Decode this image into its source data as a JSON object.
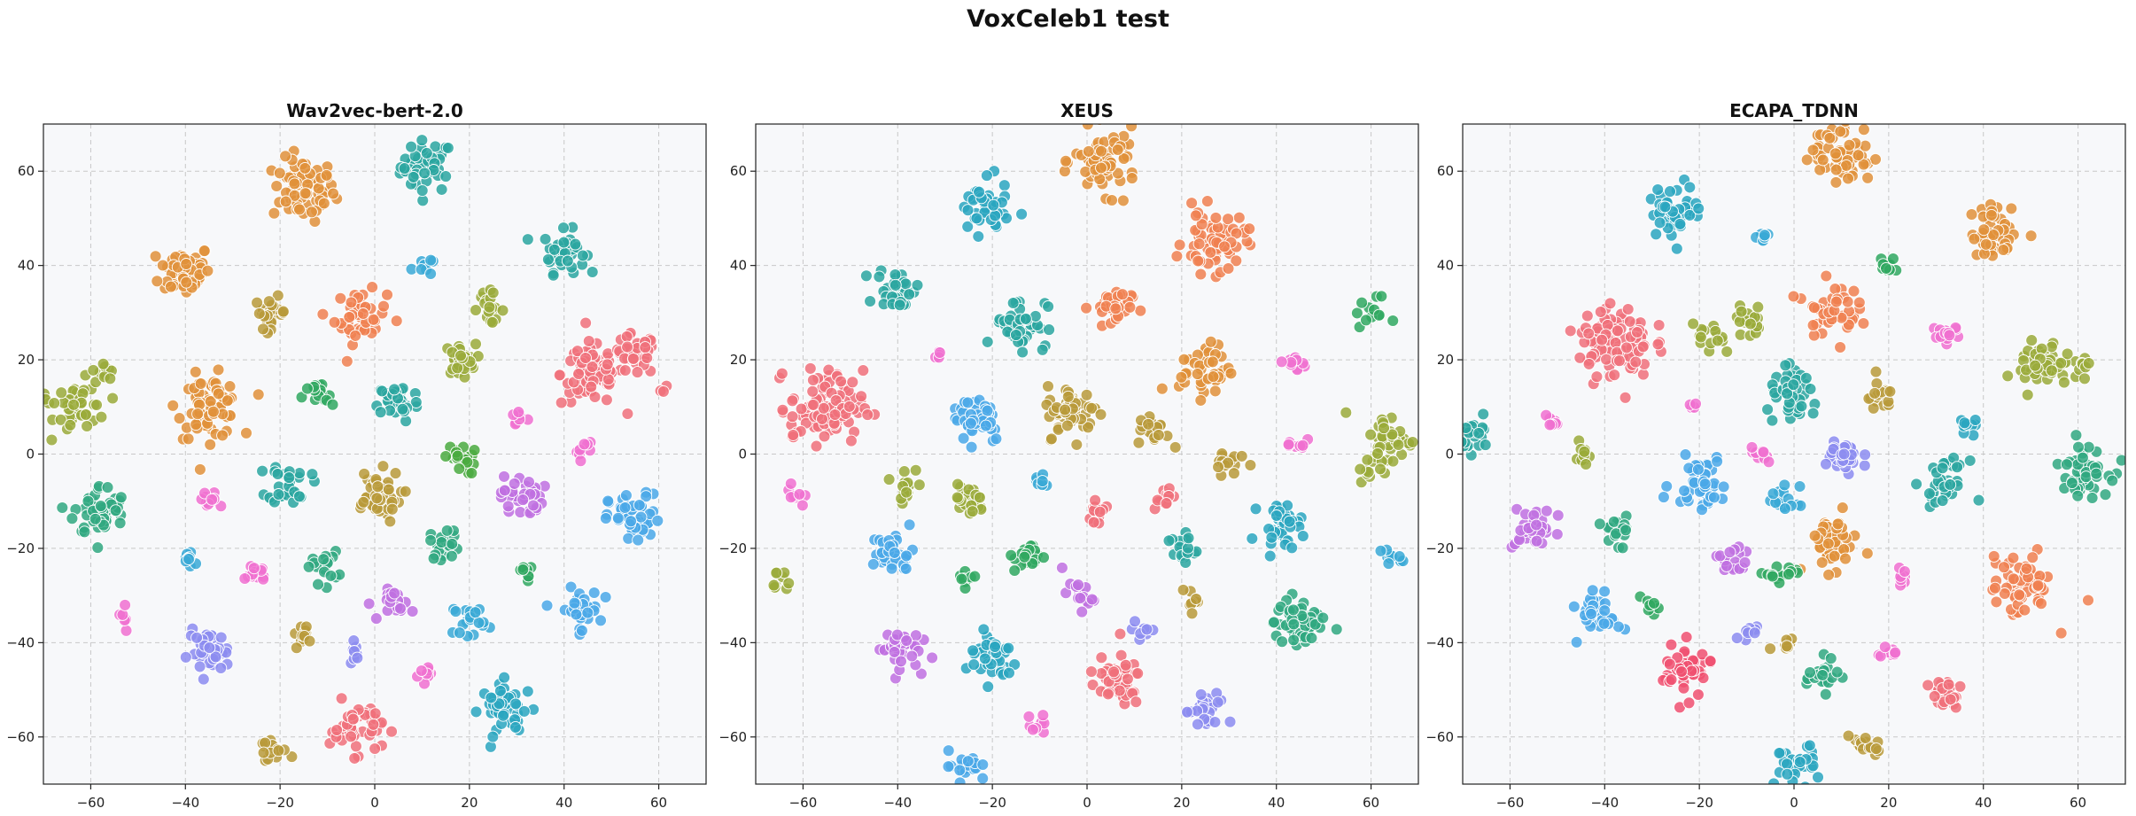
{
  "figure": {
    "title": "VoxCeleb1 test"
  },
  "chart_data": [
    {
      "type": "scatter",
      "title": "Wav2vec-bert-2.0",
      "xlabel": "",
      "ylabel": "",
      "xlim": [
        -70,
        70
      ],
      "ylim": [
        -70,
        70
      ],
      "xticks": [
        -60,
        -40,
        -20,
        0,
        20,
        40,
        60
      ],
      "yticks": [
        -60,
        -40,
        -20,
        0,
        20,
        40,
        60
      ],
      "grid": true,
      "clusters": [
        {
          "x": 11,
          "y": 61,
          "r": 5,
          "n": 45,
          "color": "#2aa6a0"
        },
        {
          "x": -15,
          "y": 56,
          "r": 6,
          "n": 70,
          "color": "#e0913a"
        },
        {
          "x": -40,
          "y": 39,
          "r": 5,
          "n": 60,
          "color": "#e0913a"
        },
        {
          "x": 40,
          "y": 43,
          "r": 4,
          "n": 40,
          "color": "#2aa6a0"
        },
        {
          "x": 10,
          "y": 40,
          "r": 2,
          "n": 8,
          "color": "#3aa9d6"
        },
        {
          "x": -3,
          "y": 29,
          "r": 5,
          "n": 45,
          "color": "#f08050"
        },
        {
          "x": -22,
          "y": 30,
          "r": 3,
          "n": 25,
          "color": "#b89a3a"
        },
        {
          "x": 24,
          "y": 31,
          "r": 3,
          "n": 20,
          "color": "#9aaa3a"
        },
        {
          "x": 46,
          "y": 17,
          "r": 6,
          "n": 80,
          "color": "#f0707a"
        },
        {
          "x": 55,
          "y": 21,
          "r": 4,
          "n": 40,
          "color": "#f0707a"
        },
        {
          "x": -62,
          "y": 10,
          "r": 5,
          "n": 40,
          "color": "#9aaa3a"
        },
        {
          "x": -57,
          "y": 18,
          "r": 2,
          "n": 10,
          "color": "#9aaa3a"
        },
        {
          "x": -35,
          "y": 10,
          "r": 6,
          "n": 70,
          "color": "#e0913a"
        },
        {
          "x": 18,
          "y": 20,
          "r": 3,
          "n": 30,
          "color": "#9aaa3a"
        },
        {
          "x": -12,
          "y": 12,
          "r": 3,
          "n": 15,
          "color": "#30a860"
        },
        {
          "x": 5,
          "y": 11,
          "r": 4,
          "n": 40,
          "color": "#2aa6a0"
        },
        {
          "x": 30,
          "y": 8,
          "r": 2,
          "n": 8,
          "color": "#f070d0"
        },
        {
          "x": -58,
          "y": -12,
          "r": 5,
          "n": 50,
          "color": "#30a880"
        },
        {
          "x": -18,
          "y": -6,
          "r": 4,
          "n": 30,
          "color": "#2aa6a0"
        },
        {
          "x": 0,
          "y": -9,
          "r": 5,
          "n": 45,
          "color": "#b89a3a"
        },
        {
          "x": 18,
          "y": -1,
          "r": 3,
          "n": 20,
          "color": "#4aaa40"
        },
        {
          "x": 31,
          "y": -9,
          "r": 4,
          "n": 35,
          "color": "#c070e0"
        },
        {
          "x": 44,
          "y": 1,
          "r": 2,
          "n": 8,
          "color": "#f070d0"
        },
        {
          "x": 55,
          "y": -14,
          "r": 5,
          "n": 50,
          "color": "#4aa8e8"
        },
        {
          "x": -35,
          "y": -10,
          "r": 2,
          "n": 12,
          "color": "#f070d0"
        },
        {
          "x": -39,
          "y": -22,
          "r": 2,
          "n": 12,
          "color": "#3aa9d6"
        },
        {
          "x": -25,
          "y": -25,
          "r": 2,
          "n": 12,
          "color": "#f070d0"
        },
        {
          "x": -11,
          "y": -24,
          "r": 3,
          "n": 18,
          "color": "#30a880"
        },
        {
          "x": 15,
          "y": -19,
          "r": 3,
          "n": 20,
          "color": "#30a880"
        },
        {
          "x": 32,
          "y": -25,
          "r": 2,
          "n": 8,
          "color": "#30a860"
        },
        {
          "x": 43,
          "y": -33,
          "r": 4,
          "n": 35,
          "color": "#4aa8e8"
        },
        {
          "x": -52,
          "y": -34,
          "r": 2,
          "n": 6,
          "color": "#f070d0"
        },
        {
          "x": -35,
          "y": -42,
          "r": 4,
          "n": 40,
          "color": "#8c8cf0"
        },
        {
          "x": -15,
          "y": -38,
          "r": 2,
          "n": 12,
          "color": "#b89a3a"
        },
        {
          "x": 5,
          "y": -32,
          "r": 3,
          "n": 20,
          "color": "#c070e0"
        },
        {
          "x": 20,
          "y": -35,
          "r": 3,
          "n": 20,
          "color": "#3aa9d6"
        },
        {
          "x": -4,
          "y": -42,
          "r": 2,
          "n": 8,
          "color": "#8c8cf0"
        },
        {
          "x": 10,
          "y": -47,
          "r": 2,
          "n": 8,
          "color": "#f070d0"
        },
        {
          "x": 28,
          "y": -54,
          "r": 5,
          "n": 45,
          "color": "#2aa6c0"
        },
        {
          "x": -4,
          "y": -58,
          "r": 5,
          "n": 45,
          "color": "#f0707a"
        },
        {
          "x": -22,
          "y": -63,
          "r": 3,
          "n": 15,
          "color": "#b89a3a"
        },
        {
          "x": -69,
          "y": 11,
          "r": 1,
          "n": 3,
          "color": "#9aaa3a"
        },
        {
          "x": 61,
          "y": 13,
          "r": 1,
          "n": 3,
          "color": "#f0707a"
        }
      ]
    },
    {
      "type": "scatter",
      "title": "XEUS",
      "xlabel": "",
      "ylabel": "",
      "xlim": [
        -70,
        70
      ],
      "ylim": [
        -70,
        70
      ],
      "xticks": [
        -60,
        -40,
        -20,
        0,
        20,
        40,
        60
      ],
      "yticks": [
        -60,
        -40,
        -20,
        0,
        20,
        40,
        60
      ],
      "grid": true,
      "clusters": [
        {
          "x": 4,
          "y": 62,
          "r": 6,
          "n": 65,
          "color": "#e0913a"
        },
        {
          "x": -22,
          "y": 52,
          "r": 5,
          "n": 50,
          "color": "#2aa6c0"
        },
        {
          "x": 27,
          "y": 45,
          "r": 6,
          "n": 60,
          "color": "#f08050"
        },
        {
          "x": -40,
          "y": 35,
          "r": 4,
          "n": 35,
          "color": "#2aa6a0"
        },
        {
          "x": -14,
          "y": 28,
          "r": 5,
          "n": 45,
          "color": "#2aa6a0"
        },
        {
          "x": 5,
          "y": 31,
          "r": 4,
          "n": 35,
          "color": "#f08050"
        },
        {
          "x": 60,
          "y": 30,
          "r": 3,
          "n": 12,
          "color": "#30a860"
        },
        {
          "x": -32,
          "y": 21,
          "r": 1,
          "n": 5,
          "color": "#f070d0"
        },
        {
          "x": -55,
          "y": 10,
          "r": 7,
          "n": 100,
          "color": "#f0707a"
        },
        {
          "x": 25,
          "y": 18,
          "r": 5,
          "n": 45,
          "color": "#e0913a"
        },
        {
          "x": 44,
          "y": 19,
          "r": 2,
          "n": 10,
          "color": "#f070d0"
        },
        {
          "x": -23,
          "y": 8,
          "r": 5,
          "n": 45,
          "color": "#4aa8e8"
        },
        {
          "x": -3,
          "y": 9,
          "r": 5,
          "n": 50,
          "color": "#b89a3a"
        },
        {
          "x": 14,
          "y": 5,
          "r": 3,
          "n": 20,
          "color": "#b89a3a"
        },
        {
          "x": 64,
          "y": 3,
          "r": 5,
          "n": 40,
          "color": "#9aaa3a"
        },
        {
          "x": 30,
          "y": -1,
          "r": 3,
          "n": 15,
          "color": "#b89a3a"
        },
        {
          "x": 44,
          "y": 2,
          "r": 2,
          "n": 8,
          "color": "#f070d0"
        },
        {
          "x": -62,
          "y": 4,
          "r": 1,
          "n": 3,
          "color": "#f0707a"
        },
        {
          "x": -62,
          "y": -9,
          "r": 2,
          "n": 8,
          "color": "#f070d0"
        },
        {
          "x": -38,
          "y": -6,
          "r": 3,
          "n": 15,
          "color": "#9aaa3a"
        },
        {
          "x": -25,
          "y": -10,
          "r": 3,
          "n": 25,
          "color": "#9aaa3a"
        },
        {
          "x": -10,
          "y": -6,
          "r": 2,
          "n": 10,
          "color": "#3aa9d6"
        },
        {
          "x": 2,
          "y": -12,
          "r": 3,
          "n": 15,
          "color": "#f0707a"
        },
        {
          "x": 16,
          "y": -9,
          "r": 2,
          "n": 12,
          "color": "#f0707a"
        },
        {
          "x": 60,
          "y": -4,
          "r": 2,
          "n": 8,
          "color": "#9aaa3a"
        },
        {
          "x": 41,
          "y": -15,
          "r": 4,
          "n": 35,
          "color": "#2aa6c0"
        },
        {
          "x": -41,
          "y": -21,
          "r": 4,
          "n": 35,
          "color": "#4aa8e8"
        },
        {
          "x": -12,
          "y": -22,
          "r": 3,
          "n": 20,
          "color": "#30a860"
        },
        {
          "x": 20,
          "y": -20,
          "r": 3,
          "n": 20,
          "color": "#2aa6a0"
        },
        {
          "x": 64,
          "y": -22,
          "r": 2,
          "n": 10,
          "color": "#3aa9d6"
        },
        {
          "x": -65,
          "y": -27,
          "r": 2,
          "n": 10,
          "color": "#9aaa3a"
        },
        {
          "x": -26,
          "y": -26,
          "r": 2,
          "n": 8,
          "color": "#30a860"
        },
        {
          "x": -2,
          "y": -30,
          "r": 3,
          "n": 15,
          "color": "#c070e0"
        },
        {
          "x": 22,
          "y": -31,
          "r": 2,
          "n": 10,
          "color": "#b89a3a"
        },
        {
          "x": 45,
          "y": -36,
          "r": 5,
          "n": 50,
          "color": "#30a880"
        },
        {
          "x": -40,
          "y": -41,
          "r": 4,
          "n": 35,
          "color": "#c070e0"
        },
        {
          "x": -20,
          "y": -43,
          "r": 5,
          "n": 40,
          "color": "#2aa6c0"
        },
        {
          "x": 12,
          "y": -37,
          "r": 2,
          "n": 8,
          "color": "#8c8cf0"
        },
        {
          "x": 6,
          "y": -48,
          "r": 5,
          "n": 45,
          "color": "#f0707a"
        },
        {
          "x": 25,
          "y": -55,
          "r": 4,
          "n": 25,
          "color": "#8c8cf0"
        },
        {
          "x": -10,
          "y": -58,
          "r": 2,
          "n": 8,
          "color": "#f070d0"
        },
        {
          "x": -26,
          "y": -66,
          "r": 3,
          "n": 20,
          "color": "#4aa8e8"
        }
      ]
    },
    {
      "type": "scatter",
      "title": "ECAPA_TDNN",
      "xlabel": "",
      "ylabel": "",
      "xlim": [
        -70,
        70
      ],
      "ylim": [
        -70,
        70
      ],
      "xticks": [
        -60,
        -40,
        -20,
        0,
        20,
        40,
        60
      ],
      "yticks": [
        -60,
        -40,
        -20,
        0,
        20,
        40,
        60
      ],
      "grid": true,
      "clusters": [
        {
          "x": 10,
          "y": 64,
          "r": 6,
          "n": 60,
          "color": "#e0913a"
        },
        {
          "x": -25,
          "y": 52,
          "r": 5,
          "n": 50,
          "color": "#2aa6c0"
        },
        {
          "x": 43,
          "y": 47,
          "r": 5,
          "n": 45,
          "color": "#e0913a"
        },
        {
          "x": -7,
          "y": 46,
          "r": 2,
          "n": 8,
          "color": "#3aa9d6"
        },
        {
          "x": 20,
          "y": 40,
          "r": 2,
          "n": 10,
          "color": "#30a860"
        },
        {
          "x": 8,
          "y": 31,
          "r": 5,
          "n": 45,
          "color": "#f08050"
        },
        {
          "x": -38,
          "y": 24,
          "r": 7,
          "n": 110,
          "color": "#f0707a"
        },
        {
          "x": -9,
          "y": 28,
          "r": 3,
          "n": 20,
          "color": "#9aaa3a"
        },
        {
          "x": -18,
          "y": 24,
          "r": 3,
          "n": 15,
          "color": "#9aaa3a"
        },
        {
          "x": 32,
          "y": 25,
          "r": 3,
          "n": 15,
          "color": "#f070d0"
        },
        {
          "x": 53,
          "y": 19,
          "r": 5,
          "n": 45,
          "color": "#9aaa3a"
        },
        {
          "x": 61,
          "y": 19,
          "r": 2,
          "n": 8,
          "color": "#9aaa3a"
        },
        {
          "x": -67,
          "y": 4,
          "r": 3,
          "n": 25,
          "color": "#2aa6a0"
        },
        {
          "x": 0,
          "y": 12,
          "r": 5,
          "n": 45,
          "color": "#2aa6a0"
        },
        {
          "x": 18,
          "y": 12,
          "r": 3,
          "n": 18,
          "color": "#b89a3a"
        },
        {
          "x": -21,
          "y": 10,
          "r": 1,
          "n": 4,
          "color": "#f070d0"
        },
        {
          "x": -45,
          "y": 0,
          "r": 2,
          "n": 10,
          "color": "#9aaa3a"
        },
        {
          "x": -51,
          "y": 6,
          "r": 2,
          "n": 8,
          "color": "#f070d0"
        },
        {
          "x": 10,
          "y": -1,
          "r": 4,
          "n": 30,
          "color": "#8c8cf0"
        },
        {
          "x": -7,
          "y": 0,
          "r": 2,
          "n": 10,
          "color": "#f070d0"
        },
        {
          "x": 37,
          "y": 6,
          "r": 2,
          "n": 10,
          "color": "#2aa6c0"
        },
        {
          "x": -20,
          "y": -6,
          "r": 5,
          "n": 45,
          "color": "#4aa8e8"
        },
        {
          "x": 61,
          "y": -3,
          "r": 5,
          "n": 50,
          "color": "#30a880"
        },
        {
          "x": 32,
          "y": -6,
          "r": 4,
          "n": 35,
          "color": "#2aa6a0"
        },
        {
          "x": -2,
          "y": -10,
          "r": 3,
          "n": 15,
          "color": "#3aa9d6"
        },
        {
          "x": -55,
          "y": -16,
          "r": 4,
          "n": 35,
          "color": "#c070e0"
        },
        {
          "x": -37,
          "y": -16,
          "r": 3,
          "n": 20,
          "color": "#30a880"
        },
        {
          "x": 8,
          "y": -19,
          "r": 5,
          "n": 45,
          "color": "#e0913a"
        },
        {
          "x": -13,
          "y": -23,
          "r": 3,
          "n": 20,
          "color": "#c070e0"
        },
        {
          "x": -3,
          "y": -26,
          "r": 3,
          "n": 15,
          "color": "#30a860"
        },
        {
          "x": 23,
          "y": -26,
          "r": 2,
          "n": 8,
          "color": "#f070d0"
        },
        {
          "x": 48,
          "y": -28,
          "r": 6,
          "n": 60,
          "color": "#f08050"
        },
        {
          "x": -41,
          "y": -34,
          "r": 4,
          "n": 35,
          "color": "#4aa8e8"
        },
        {
          "x": -30,
          "y": -32,
          "r": 2,
          "n": 8,
          "color": "#30a860"
        },
        {
          "x": -9,
          "y": -38,
          "r": 2,
          "n": 8,
          "color": "#8c8cf0"
        },
        {
          "x": -2,
          "y": -40,
          "r": 2,
          "n": 10,
          "color": "#b89a3a"
        },
        {
          "x": 20,
          "y": -42,
          "r": 2,
          "n": 10,
          "color": "#f070d0"
        },
        {
          "x": -23,
          "y": -46,
          "r": 5,
          "n": 45,
          "color": "#f05070"
        },
        {
          "x": 6,
          "y": -47,
          "r": 3,
          "n": 20,
          "color": "#30a880"
        },
        {
          "x": 32,
          "y": -51,
          "r": 3,
          "n": 25,
          "color": "#f0707a"
        },
        {
          "x": 15,
          "y": -62,
          "r": 3,
          "n": 18,
          "color": "#b89a3a"
        },
        {
          "x": 0,
          "y": -66,
          "r": 4,
          "n": 30,
          "color": "#2aa6c0"
        }
      ]
    }
  ]
}
